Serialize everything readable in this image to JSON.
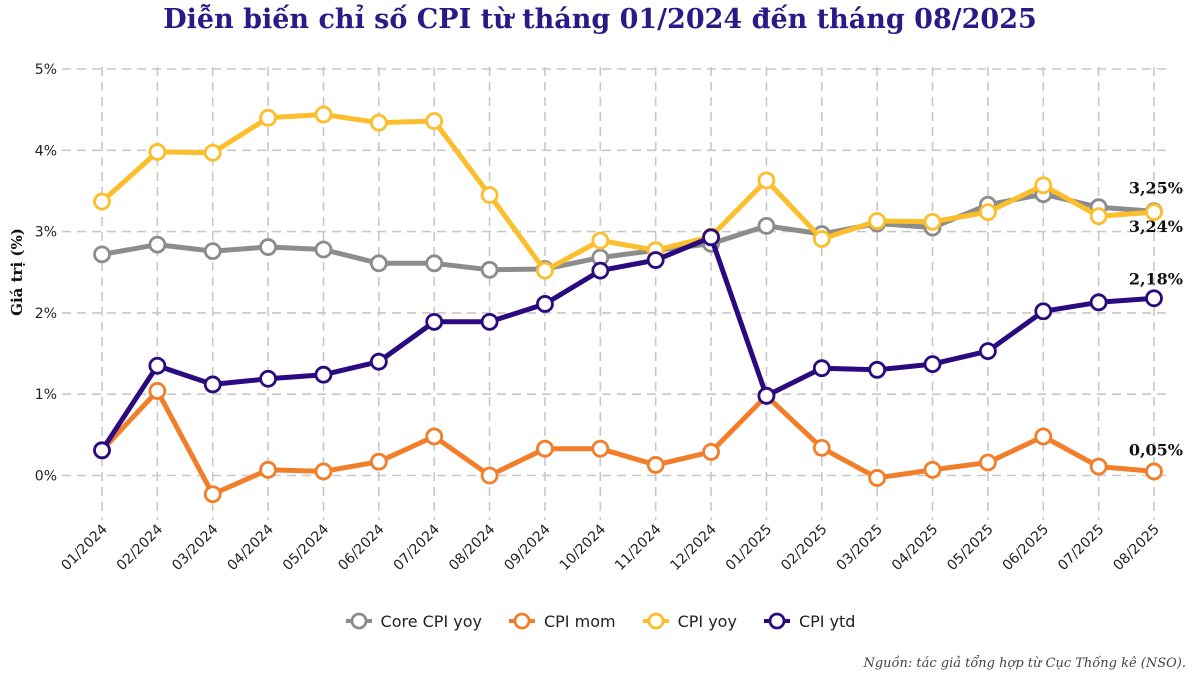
{
  "title": "Diễn biến chỉ số CPI từ tháng 01/2024 đến tháng 08/2025",
  "source": "Nguồn: tác giả tổng hợp từ Cục Thống kê (NSO).",
  "chart_data": {
    "type": "line",
    "title": "Diễn biến chỉ số CPI từ tháng 01/2024 đến tháng 08/2025",
    "xlabel": "",
    "ylabel": "Giá trị (%)",
    "ylim": [
      -0.4,
      5.0
    ],
    "yticks": [
      0,
      1,
      2,
      3,
      4,
      5
    ],
    "ytick_labels": [
      "0%",
      "1%",
      "2%",
      "3%",
      "4%",
      "5%"
    ],
    "grid": true,
    "legend_position": "bottom",
    "categories": [
      "01/2024",
      "02/2024",
      "03/2024",
      "04/2024",
      "05/2024",
      "06/2024",
      "07/2024",
      "08/2024",
      "09/2024",
      "10/2024",
      "11/2024",
      "12/2024",
      "01/2025",
      "02/2025",
      "03/2025",
      "04/2025",
      "05/2025",
      "06/2025",
      "07/2025",
      "08/2025"
    ],
    "series": [
      {
        "name": "Core CPI yoy",
        "color": "#8c8c8c",
        "values": [
          2.72,
          2.84,
          2.76,
          2.81,
          2.78,
          2.61,
          2.61,
          2.53,
          2.54,
          2.68,
          2.77,
          2.85,
          3.07,
          2.97,
          3.1,
          3.05,
          3.33,
          3.46,
          3.3,
          3.25
        ],
        "end_label": "3,25%"
      },
      {
        "name": "CPI mom",
        "color": "#f27e2a",
        "values": [
          0.31,
          1.04,
          -0.23,
          0.07,
          0.05,
          0.17,
          0.48,
          0.0,
          0.33,
          0.33,
          0.13,
          0.29,
          0.98,
          0.34,
          -0.03,
          0.07,
          0.16,
          0.48,
          0.11,
          0.05
        ],
        "end_label": "0,05%"
      },
      {
        "name": "CPI yoy",
        "color": "#fcbe2a",
        "values": [
          3.37,
          3.98,
          3.97,
          4.4,
          4.44,
          4.34,
          4.36,
          3.45,
          2.52,
          2.89,
          2.77,
          2.94,
          3.63,
          2.91,
          3.13,
          3.12,
          3.24,
          3.57,
          3.19,
          3.24
        ],
        "end_label": "3,24%"
      },
      {
        "name": "CPI ytd",
        "color": "#2a0a7e",
        "values": [
          0.31,
          1.35,
          1.12,
          1.19,
          1.24,
          1.4,
          1.89,
          1.89,
          2.11,
          2.52,
          2.65,
          2.93,
          0.98,
          1.32,
          1.3,
          1.37,
          1.53,
          2.02,
          2.13,
          2.18
        ],
        "end_label": "2,18%"
      }
    ]
  }
}
